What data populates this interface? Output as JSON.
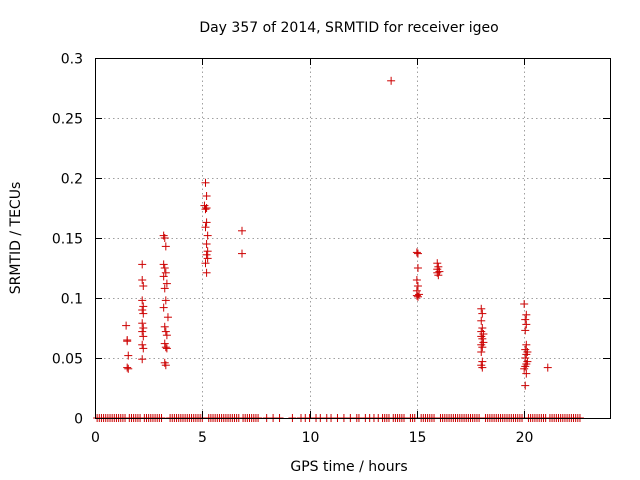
{
  "chart_data": {
    "type": "scatter",
    "title": "Day 357 of 2014, SRMTID for receiver igeo",
    "xlabel": "GPS time / hours",
    "ylabel": "SRMTID / TECUs",
    "xlim": [
      0,
      24
    ],
    "ylim": [
      0,
      0.3
    ],
    "xticks": [
      0,
      5,
      10,
      15,
      20
    ],
    "yticks": [
      0,
      0.05,
      0.1,
      0.15,
      0.2,
      0.25,
      0.3
    ],
    "xtick_labels": [
      "0",
      "5",
      "10",
      "15",
      "20"
    ],
    "ytick_labels": [
      "0",
      "0.05",
      "0.1",
      "0.15",
      "0.2",
      "0.25",
      "0.3"
    ],
    "grid": true,
    "marker": "+",
    "color": "#cc0000",
    "series": [
      {
        "name": "SRMTID",
        "points": [
          [
            1.45,
            0.077
          ],
          [
            1.5,
            0.065
          ],
          [
            1.5,
            0.064
          ],
          [
            1.55,
            0.052
          ],
          [
            1.5,
            0.042
          ],
          [
            1.55,
            0.041
          ],
          [
            2.2,
            0.128
          ],
          [
            2.2,
            0.115
          ],
          [
            2.25,
            0.11
          ],
          [
            2.2,
            0.098
          ],
          [
            2.25,
            0.093
          ],
          [
            2.2,
            0.09
          ],
          [
            2.25,
            0.087
          ],
          [
            2.2,
            0.079
          ],
          [
            2.25,
            0.075
          ],
          [
            2.2,
            0.072
          ],
          [
            2.25,
            0.068
          ],
          [
            2.2,
            0.061
          ],
          [
            2.25,
            0.058
          ],
          [
            2.2,
            0.049
          ],
          [
            3.2,
            0.152
          ],
          [
            3.25,
            0.15
          ],
          [
            3.3,
            0.143
          ],
          [
            3.2,
            0.128
          ],
          [
            3.25,
            0.125
          ],
          [
            3.3,
            0.121
          ],
          [
            3.2,
            0.118
          ],
          [
            3.35,
            0.112
          ],
          [
            3.25,
            0.108
          ],
          [
            3.3,
            0.098
          ],
          [
            3.2,
            0.092
          ],
          [
            3.4,
            0.084
          ],
          [
            3.25,
            0.076
          ],
          [
            3.3,
            0.072
          ],
          [
            3.35,
            0.069
          ],
          [
            3.25,
            0.062
          ],
          [
            3.3,
            0.059
          ],
          [
            3.35,
            0.058
          ],
          [
            3.25,
            0.046
          ],
          [
            3.3,
            0.044
          ],
          [
            5.15,
            0.196
          ],
          [
            5.2,
            0.185
          ],
          [
            5.1,
            0.177
          ],
          [
            5.2,
            0.175
          ],
          [
            5.15,
            0.174
          ],
          [
            5.2,
            0.163
          ],
          [
            5.15,
            0.159
          ],
          [
            5.25,
            0.152
          ],
          [
            5.2,
            0.145
          ],
          [
            5.25,
            0.139
          ],
          [
            5.2,
            0.136
          ],
          [
            5.25,
            0.133
          ],
          [
            5.15,
            0.129
          ],
          [
            5.2,
            0.121
          ],
          [
            6.85,
            0.156
          ],
          [
            6.85,
            0.137
          ],
          [
            13.8,
            0.281
          ],
          [
            15.0,
            0.138
          ],
          [
            15.05,
            0.137
          ],
          [
            15.05,
            0.125
          ],
          [
            15.0,
            0.115
          ],
          [
            15.05,
            0.11
          ],
          [
            15.0,
            0.106
          ],
          [
            15.1,
            0.103
          ],
          [
            15.0,
            0.102
          ],
          [
            15.05,
            0.101
          ],
          [
            15.95,
            0.129
          ],
          [
            16.0,
            0.126
          ],
          [
            15.95,
            0.124
          ],
          [
            16.05,
            0.122
          ],
          [
            15.95,
            0.121
          ],
          [
            16.0,
            0.119
          ],
          [
            18.0,
            0.091
          ],
          [
            18.05,
            0.087
          ],
          [
            18.0,
            0.081
          ],
          [
            18.05,
            0.075
          ],
          [
            18.0,
            0.072
          ],
          [
            18.1,
            0.07
          ],
          [
            18.0,
            0.068
          ],
          [
            18.05,
            0.066
          ],
          [
            18.1,
            0.063
          ],
          [
            18.0,
            0.061
          ],
          [
            18.05,
            0.059
          ],
          [
            18.0,
            0.055
          ],
          [
            18.05,
            0.047
          ],
          [
            18.0,
            0.044
          ],
          [
            18.05,
            0.042
          ],
          [
            20.0,
            0.095
          ],
          [
            20.1,
            0.086
          ],
          [
            20.05,
            0.082
          ],
          [
            20.1,
            0.078
          ],
          [
            20.05,
            0.073
          ],
          [
            20.1,
            0.061
          ],
          [
            20.05,
            0.057
          ],
          [
            20.15,
            0.055
          ],
          [
            20.1,
            0.053
          ],
          [
            20.05,
            0.05
          ],
          [
            20.15,
            0.047
          ],
          [
            20.1,
            0.045
          ],
          [
            20.05,
            0.043
          ],
          [
            20.0,
            0.041
          ],
          [
            20.1,
            0.037
          ],
          [
            20.05,
            0.027
          ],
          [
            21.1,
            0.042
          ]
        ],
        "zero_level_x": [
          0.1,
          0.2,
          0.3,
          0.4,
          0.5,
          0.6,
          0.7,
          0.8,
          0.9,
          1.0,
          1.1,
          1.2,
          1.3,
          1.4,
          1.6,
          1.7,
          1.8,
          1.9,
          2.0,
          2.1,
          2.3,
          2.4,
          2.5,
          2.6,
          2.7,
          2.8,
          2.9,
          3.0,
          3.1,
          3.5,
          3.6,
          3.7,
          3.8,
          3.9,
          4.0,
          4.1,
          4.2,
          4.3,
          4.4,
          4.5,
          4.6,
          4.7,
          4.8,
          4.9,
          5.0,
          5.3,
          5.4,
          5.5,
          5.6,
          5.7,
          5.8,
          5.9,
          6.0,
          6.1,
          6.2,
          6.3,
          6.4,
          6.5,
          6.6,
          6.7,
          6.9,
          7.0,
          7.1,
          7.2,
          7.3,
          7.4,
          7.5,
          7.6,
          8.0,
          8.3,
          8.6,
          9.2,
          9.6,
          9.8,
          10.0,
          10.3,
          10.5,
          10.8,
          11.0,
          11.3,
          11.6,
          11.9,
          12.2,
          12.3,
          12.6,
          12.8,
          13.0,
          13.2,
          13.4,
          13.5,
          13.6,
          13.7,
          13.9,
          14.0,
          14.1,
          14.2,
          14.3,
          14.4,
          14.7,
          14.8,
          14.9,
          15.2,
          15.3,
          15.4,
          15.5,
          15.6,
          15.7,
          15.8,
          16.1,
          16.2,
          16.3,
          16.4,
          16.5,
          16.6,
          16.7,
          16.8,
          16.9,
          17.0,
          17.1,
          17.2,
          17.3,
          17.4,
          17.5,
          17.6,
          17.7,
          17.8,
          17.9,
          18.2,
          18.3,
          18.4,
          18.5,
          18.6,
          18.7,
          18.8,
          18.9,
          19.0,
          19.1,
          19.2,
          19.3,
          19.4,
          19.5,
          19.6,
          19.7,
          19.8,
          19.9,
          20.2,
          20.3,
          20.4,
          20.5,
          20.6,
          20.7,
          20.8,
          20.9,
          21.0,
          21.2,
          21.3,
          21.4,
          21.5,
          21.6,
          21.7,
          21.8,
          21.9,
          22.0,
          22.1,
          22.2,
          22.3,
          22.4,
          22.5,
          22.6
        ]
      }
    ]
  }
}
